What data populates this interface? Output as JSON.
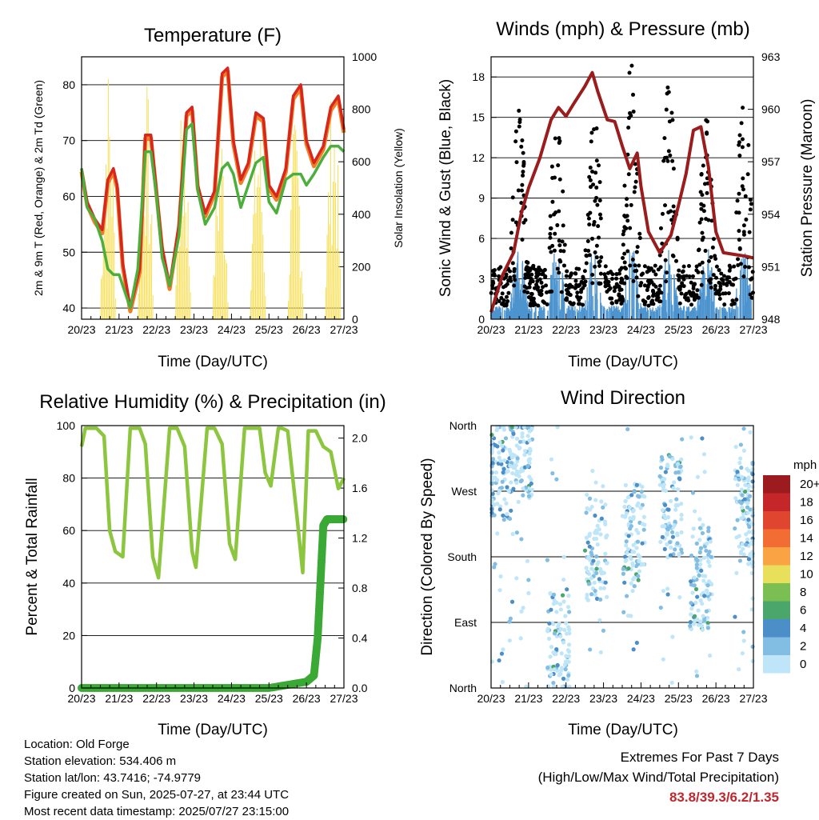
{
  "panels": {
    "temperature": {
      "title": "Temperature (F)",
      "ylabel_left": "2m & 9m T (Red, Orange) & 2m Td (Green)",
      "ylabel_right": "Solar Insolation (Yellow)",
      "xlabel": "Time (Day/UTC)"
    },
    "winds": {
      "title": "Winds (mph) & Pressure (mb)",
      "ylabel_left": "Sonic Wind & Gust (Blue, Black)",
      "ylabel_right": "Station Pressure (Maroon)",
      "xlabel": "Time (Day/UTC)"
    },
    "humidity": {
      "title": "Relative Humidity (%) & Precipitation (in)",
      "ylabel_left": "Percent & Total Rainfall",
      "xlabel": "Time (Day/UTC)"
    },
    "direction": {
      "title": "Wind Direction",
      "ylabel_left": "Direction (Colored By Speed)",
      "xlabel": "Time (Day/UTC)",
      "colorbar_title": "mph"
    }
  },
  "station": {
    "location": "Location: Old Forge",
    "elevation": "Station elevation: 534.406 m",
    "latlon": "Station lat/lon: 43.7416; -74.9779",
    "created": "Figure created on Sun, 2025-07-27, at 23:44 UTC",
    "recent": "Most recent data timestamp: 2025/07/27 23:15:00"
  },
  "extremes": {
    "line1": "Extremes For Past 7 Days",
    "line2": "(High/Low/Max Wind/Total Precipitation)",
    "values": "83.8/39.3/6.2/1.35"
  },
  "chart_data": [
    {
      "name": "temperature",
      "type": "line",
      "x_ticks": [
        "20/23",
        "21/23",
        "22/23",
        "23/23",
        "24/23",
        "25/23",
        "26/23",
        "27/23"
      ],
      "xlim": [
        0,
        7
      ],
      "ylim": [
        38,
        85
      ],
      "y_ticks": [
        40,
        50,
        60,
        70,
        80
      ],
      "y2lim": [
        0,
        1000
      ],
      "y2_ticks": [
        0,
        200,
        400,
        600,
        800,
        1000
      ],
      "colors": {
        "t2m": "#d9261c",
        "t9m": "#f07e26",
        "td": "#4caf3c",
        "solar": "#f6e05a"
      },
      "series": [
        {
          "key": "t2m",
          "x": [
            0,
            0.15,
            0.35,
            0.55,
            0.7,
            0.85,
            0.95,
            1.1,
            1.3,
            1.55,
            1.7,
            1.85,
            2,
            2.15,
            2.35,
            2.6,
            2.8,
            2.95,
            3.1,
            3.3,
            3.55,
            3.75,
            3.9,
            4.05,
            4.25,
            4.45,
            4.65,
            4.85,
            5.0,
            5.2,
            5.45,
            5.65,
            5.85,
            6.0,
            6.2,
            6.45,
            6.65,
            6.85,
            7.0
          ],
          "y": [
            65,
            59,
            56,
            54,
            63,
            65,
            62,
            48,
            40,
            47,
            71,
            71,
            61,
            51,
            44,
            55,
            75,
            76,
            62,
            57,
            61,
            82,
            83,
            70,
            63,
            66,
            75,
            74,
            62,
            60,
            65,
            78,
            80,
            70,
            66,
            69,
            76,
            78,
            72
          ]
        },
        {
          "key": "td",
          "x": [
            0,
            0.15,
            0.35,
            0.55,
            0.7,
            0.85,
            1.0,
            1.1,
            1.3,
            1.5,
            1.7,
            1.85,
            2.0,
            2.15,
            2.35,
            2.6,
            2.8,
            2.95,
            3.1,
            3.3,
            3.55,
            3.75,
            3.9,
            4.05,
            4.25,
            4.45,
            4.65,
            4.85,
            5.0,
            5.2,
            5.45,
            5.65,
            5.85,
            6.0,
            6.2,
            6.45,
            6.65,
            6.85,
            7.0
          ],
          "y": [
            65,
            58,
            56,
            52,
            47,
            46,
            46,
            44,
            40,
            47,
            68,
            68,
            60,
            49,
            44,
            53,
            72,
            73,
            61,
            55,
            58,
            65,
            66,
            64,
            58,
            62,
            66,
            67,
            59,
            57,
            63,
            64,
            64,
            62,
            64,
            67,
            69,
            69,
            68
          ]
        },
        {
          "key": "solar",
          "x": [
            0.45,
            0.55,
            0.6,
            0.65,
            0.75,
            0.95,
            1.45,
            1.55,
            1.6,
            1.65,
            1.75,
            1.95,
            2.45,
            2.55,
            2.65,
            2.75,
            2.95,
            3.45,
            3.55,
            3.65,
            3.75,
            3.95,
            4.45,
            4.55,
            4.65,
            4.75,
            4.95,
            5.45,
            5.55,
            5.65,
            5.75,
            5.95,
            6.45,
            6.55,
            6.65,
            6.75,
            6.95
          ],
          "y": [
            0,
            800,
            1000,
            900,
            600,
            0,
            0,
            700,
            950,
            800,
            500,
            0,
            0,
            600,
            850,
            700,
            0,
            0,
            500,
            800,
            650,
            0,
            0,
            750,
            850,
            700,
            0,
            0,
            600,
            800,
            600,
            0,
            0,
            850,
            950,
            750,
            0
          ]
        }
      ]
    },
    {
      "name": "winds",
      "type": "line",
      "x_ticks": [
        "20/23",
        "21/23",
        "22/23",
        "23/23",
        "24/23",
        "25/23",
        "26/23",
        "27/23"
      ],
      "xlim": [
        0,
        7
      ],
      "ylim": [
        0,
        19.5
      ],
      "y_ticks": [
        0,
        3,
        6,
        9,
        12,
        15,
        18
      ],
      "y2lim": [
        948,
        963
      ],
      "y2_ticks": [
        948,
        951,
        954,
        957,
        960,
        963
      ],
      "colors": {
        "sonic": "#4d94cf",
        "gust": "#000000",
        "pressure": "#9b1c1c"
      },
      "series": [
        {
          "key": "pressure",
          "x": [
            0,
            0.3,
            0.6,
            0.8,
            1.0,
            1.3,
            1.6,
            1.8,
            2.0,
            2.2,
            2.5,
            2.7,
            2.85,
            3.1,
            3.3,
            3.5,
            3.7,
            3.9,
            4.0,
            4.2,
            4.5,
            4.8,
            5.0,
            5.2,
            5.4,
            5.6,
            5.8,
            6.0,
            6.2,
            6.5,
            6.8,
            7.0
          ],
          "y": [
            948.4,
            950.5,
            951.8,
            954.0,
            955.5,
            957.2,
            959.4,
            960.1,
            959.6,
            960.3,
            961.3,
            962.1,
            961.0,
            959.4,
            959.3,
            957.9,
            956.6,
            957.5,
            955.6,
            953.0,
            951.8,
            952.8,
            954.5,
            956.3,
            958.8,
            959.0,
            956.7,
            953.0,
            951.8,
            951.7,
            951.6,
            951.5
          ]
        },
        {
          "key": "sonic_daily_peak",
          "x": [
            0.25,
            0.75,
            1.75,
            2.75,
            3.75,
            4.75,
            5.75,
            6.75
          ],
          "y": [
            6.0,
            6.0,
            5.5,
            5.5,
            6.0,
            6.0,
            5.5,
            6.2
          ]
        },
        {
          "key": "gust_daily_peak",
          "x": [
            0.75,
            1.75,
            2.75,
            3.75,
            4.75,
            5.75,
            6.75
          ],
          "y": [
            14.4,
            14.0,
            14.0,
            17.8,
            16.2,
            13.5,
            17.0
          ]
        }
      ]
    },
    {
      "name": "humidity",
      "type": "line",
      "x_ticks": [
        "20/23",
        "21/23",
        "22/23",
        "23/23",
        "24/23",
        "25/23",
        "26/23",
        "27/23"
      ],
      "xlim": [
        0,
        7
      ],
      "ylim": [
        0,
        100
      ],
      "y_ticks": [
        0,
        20,
        40,
        60,
        80,
        100
      ],
      "y2lim": [
        0,
        2.1
      ],
      "y2_ticks": [
        "0.0",
        "0.4",
        "0.8",
        "1.2",
        "1.6",
        "2.0"
      ],
      "colors": {
        "rh": "#8cc63f",
        "precip": "#3ba935"
      },
      "series": [
        {
          "key": "rh",
          "x": [
            0,
            0.1,
            0.4,
            0.6,
            0.75,
            0.9,
            1.1,
            1.3,
            1.55,
            1.7,
            1.9,
            2.05,
            2.35,
            2.55,
            2.75,
            2.95,
            3.05,
            3.35,
            3.55,
            3.75,
            3.95,
            4.1,
            4.35,
            4.55,
            4.75,
            4.9,
            5.05,
            5.25,
            5.35,
            5.5,
            5.75,
            5.9,
            6.05,
            6.25,
            6.45,
            6.65,
            6.85,
            7.0
          ],
          "y": [
            92,
            99,
            99,
            96,
            60,
            52,
            50,
            99,
            99,
            93,
            50,
            42,
            99,
            99,
            92,
            52,
            46,
            99,
            99,
            93,
            55,
            49,
            99,
            99,
            99,
            82,
            77,
            99,
            99,
            98,
            65,
            44,
            98,
            98,
            92,
            90,
            76,
            80
          ]
        },
        {
          "key": "precip",
          "x": [
            0,
            1,
            2,
            3,
            4,
            5,
            6.0,
            6.2,
            6.3,
            6.35,
            6.4,
            6.45,
            6.55,
            6.7,
            7.0
          ],
          "y": [
            0,
            0,
            0,
            0,
            0,
            0,
            0.05,
            0.1,
            0.4,
            0.7,
            1.0,
            1.3,
            1.35,
            1.35,
            1.35
          ]
        }
      ]
    },
    {
      "name": "direction",
      "type": "scatter",
      "x_ticks": [
        "20/23",
        "21/23",
        "22/23",
        "23/23",
        "24/23",
        "25/23",
        "26/23",
        "27/23"
      ],
      "xlim": [
        0,
        7
      ],
      "y_ticks": [
        "North",
        "West",
        "South",
        "East",
        "North"
      ],
      "ylim": [
        0,
        360
      ],
      "colorbar": {
        "labels": [
          "20+",
          "18",
          "16",
          "14",
          "12",
          "10",
          "8",
          "6",
          "4",
          "2",
          "0"
        ],
        "colors": [
          "#9b1b1e",
          "#c5262a",
          "#e04530",
          "#f26d33",
          "#f9a345",
          "#e8df5b",
          "#7bbf52",
          "#4aa66a",
          "#4b8ec8",
          "#82bde3",
          "#bfe6f8"
        ]
      }
    }
  ]
}
